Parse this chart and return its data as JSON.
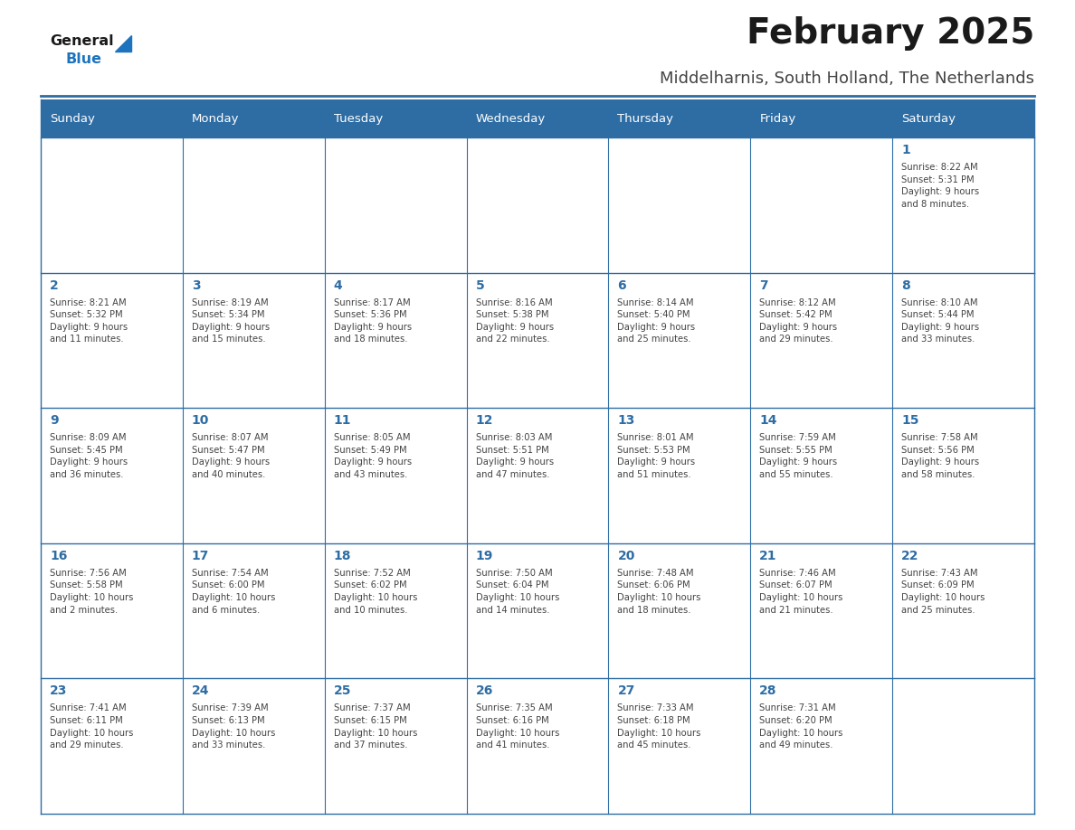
{
  "title": "February 2025",
  "subtitle": "Middelharnis, South Holland, The Netherlands",
  "header_bg_color": "#2E6DA4",
  "header_text_color": "#FFFFFF",
  "cell_bg_color": "#FFFFFF",
  "border_color": "#2E6DA4",
  "title_color": "#1a1a1a",
  "subtitle_color": "#444444",
  "day_num_color": "#2E6DA4",
  "cell_text_color": "#444444",
  "days_of_week": [
    "Sunday",
    "Monday",
    "Tuesday",
    "Wednesday",
    "Thursday",
    "Friday",
    "Saturday"
  ],
  "weeks": [
    [
      {
        "day": null,
        "info": null
      },
      {
        "day": null,
        "info": null
      },
      {
        "day": null,
        "info": null
      },
      {
        "day": null,
        "info": null
      },
      {
        "day": null,
        "info": null
      },
      {
        "day": null,
        "info": null
      },
      {
        "day": 1,
        "info": "Sunrise: 8:22 AM\nSunset: 5:31 PM\nDaylight: 9 hours\nand 8 minutes."
      }
    ],
    [
      {
        "day": 2,
        "info": "Sunrise: 8:21 AM\nSunset: 5:32 PM\nDaylight: 9 hours\nand 11 minutes."
      },
      {
        "day": 3,
        "info": "Sunrise: 8:19 AM\nSunset: 5:34 PM\nDaylight: 9 hours\nand 15 minutes."
      },
      {
        "day": 4,
        "info": "Sunrise: 8:17 AM\nSunset: 5:36 PM\nDaylight: 9 hours\nand 18 minutes."
      },
      {
        "day": 5,
        "info": "Sunrise: 8:16 AM\nSunset: 5:38 PM\nDaylight: 9 hours\nand 22 minutes."
      },
      {
        "day": 6,
        "info": "Sunrise: 8:14 AM\nSunset: 5:40 PM\nDaylight: 9 hours\nand 25 minutes."
      },
      {
        "day": 7,
        "info": "Sunrise: 8:12 AM\nSunset: 5:42 PM\nDaylight: 9 hours\nand 29 minutes."
      },
      {
        "day": 8,
        "info": "Sunrise: 8:10 AM\nSunset: 5:44 PM\nDaylight: 9 hours\nand 33 minutes."
      }
    ],
    [
      {
        "day": 9,
        "info": "Sunrise: 8:09 AM\nSunset: 5:45 PM\nDaylight: 9 hours\nand 36 minutes."
      },
      {
        "day": 10,
        "info": "Sunrise: 8:07 AM\nSunset: 5:47 PM\nDaylight: 9 hours\nand 40 minutes."
      },
      {
        "day": 11,
        "info": "Sunrise: 8:05 AM\nSunset: 5:49 PM\nDaylight: 9 hours\nand 43 minutes."
      },
      {
        "day": 12,
        "info": "Sunrise: 8:03 AM\nSunset: 5:51 PM\nDaylight: 9 hours\nand 47 minutes."
      },
      {
        "day": 13,
        "info": "Sunrise: 8:01 AM\nSunset: 5:53 PM\nDaylight: 9 hours\nand 51 minutes."
      },
      {
        "day": 14,
        "info": "Sunrise: 7:59 AM\nSunset: 5:55 PM\nDaylight: 9 hours\nand 55 minutes."
      },
      {
        "day": 15,
        "info": "Sunrise: 7:58 AM\nSunset: 5:56 PM\nDaylight: 9 hours\nand 58 minutes."
      }
    ],
    [
      {
        "day": 16,
        "info": "Sunrise: 7:56 AM\nSunset: 5:58 PM\nDaylight: 10 hours\nand 2 minutes."
      },
      {
        "day": 17,
        "info": "Sunrise: 7:54 AM\nSunset: 6:00 PM\nDaylight: 10 hours\nand 6 minutes."
      },
      {
        "day": 18,
        "info": "Sunrise: 7:52 AM\nSunset: 6:02 PM\nDaylight: 10 hours\nand 10 minutes."
      },
      {
        "day": 19,
        "info": "Sunrise: 7:50 AM\nSunset: 6:04 PM\nDaylight: 10 hours\nand 14 minutes."
      },
      {
        "day": 20,
        "info": "Sunrise: 7:48 AM\nSunset: 6:06 PM\nDaylight: 10 hours\nand 18 minutes."
      },
      {
        "day": 21,
        "info": "Sunrise: 7:46 AM\nSunset: 6:07 PM\nDaylight: 10 hours\nand 21 minutes."
      },
      {
        "day": 22,
        "info": "Sunrise: 7:43 AM\nSunset: 6:09 PM\nDaylight: 10 hours\nand 25 minutes."
      }
    ],
    [
      {
        "day": 23,
        "info": "Sunrise: 7:41 AM\nSunset: 6:11 PM\nDaylight: 10 hours\nand 29 minutes."
      },
      {
        "day": 24,
        "info": "Sunrise: 7:39 AM\nSunset: 6:13 PM\nDaylight: 10 hours\nand 33 minutes."
      },
      {
        "day": 25,
        "info": "Sunrise: 7:37 AM\nSunset: 6:15 PM\nDaylight: 10 hours\nand 37 minutes."
      },
      {
        "day": 26,
        "info": "Sunrise: 7:35 AM\nSunset: 6:16 PM\nDaylight: 10 hours\nand 41 minutes."
      },
      {
        "day": 27,
        "info": "Sunrise: 7:33 AM\nSunset: 6:18 PM\nDaylight: 10 hours\nand 45 minutes."
      },
      {
        "day": 28,
        "info": "Sunrise: 7:31 AM\nSunset: 6:20 PM\nDaylight: 10 hours\nand 49 minutes."
      },
      {
        "day": null,
        "info": null
      }
    ]
  ],
  "logo_general_color": "#1a1a1a",
  "logo_blue_color": "#1E73BE",
  "fig_width": 11.88,
  "fig_height": 9.18,
  "cell_line_color": "#2E6DA4"
}
